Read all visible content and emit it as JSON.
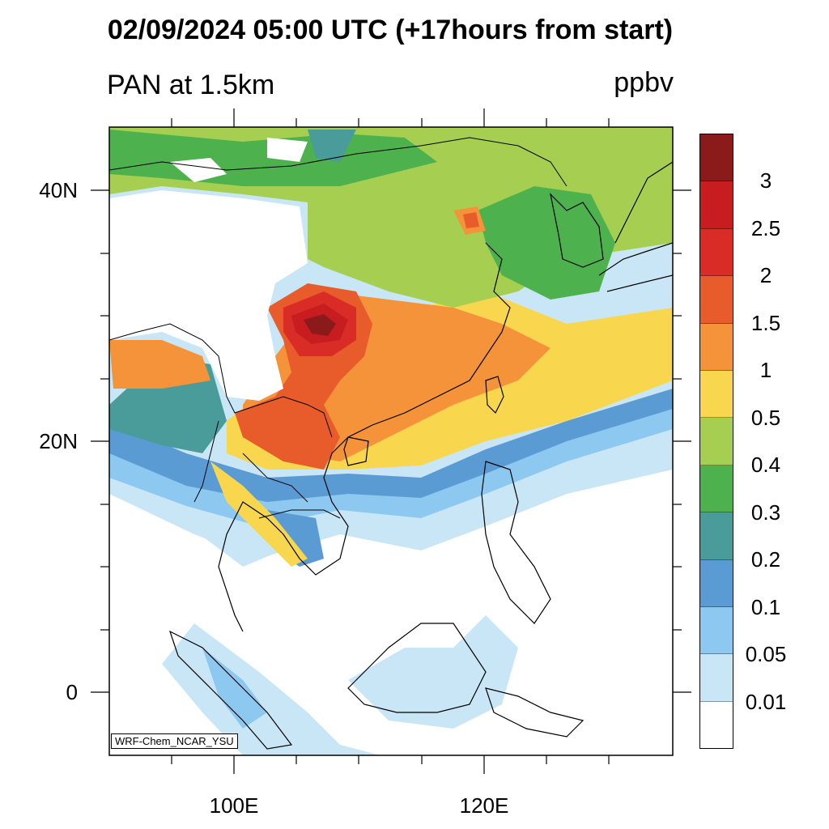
{
  "title": "02/09/2024 05:00 UTC (+17hours from start)",
  "variable": "PAN at 1.5km",
  "units": "ppbv",
  "credit": "WRF-Chem_NCAR_YSU",
  "axes": {
    "lat_labels": [
      "40N",
      "20N",
      "0"
    ],
    "lon_labels": [
      "100E",
      "120E"
    ]
  },
  "colorbar": {
    "labels": [
      "3",
      "2.5",
      "2",
      "1.5",
      "1",
      "0.5",
      "0.4",
      "0.3",
      "0.2",
      "0.1",
      "0.05",
      "0.01"
    ],
    "colors": [
      "#8b1a1a",
      "#c71c20",
      "#da2c27",
      "#e85b2a",
      "#f4933a",
      "#f8d74e",
      "#a6cf52",
      "#4db14e",
      "#4a9c9a",
      "#5b9bd4",
      "#8cc8ef",
      "#c9e6f7",
      "#ffffff"
    ]
  }
}
